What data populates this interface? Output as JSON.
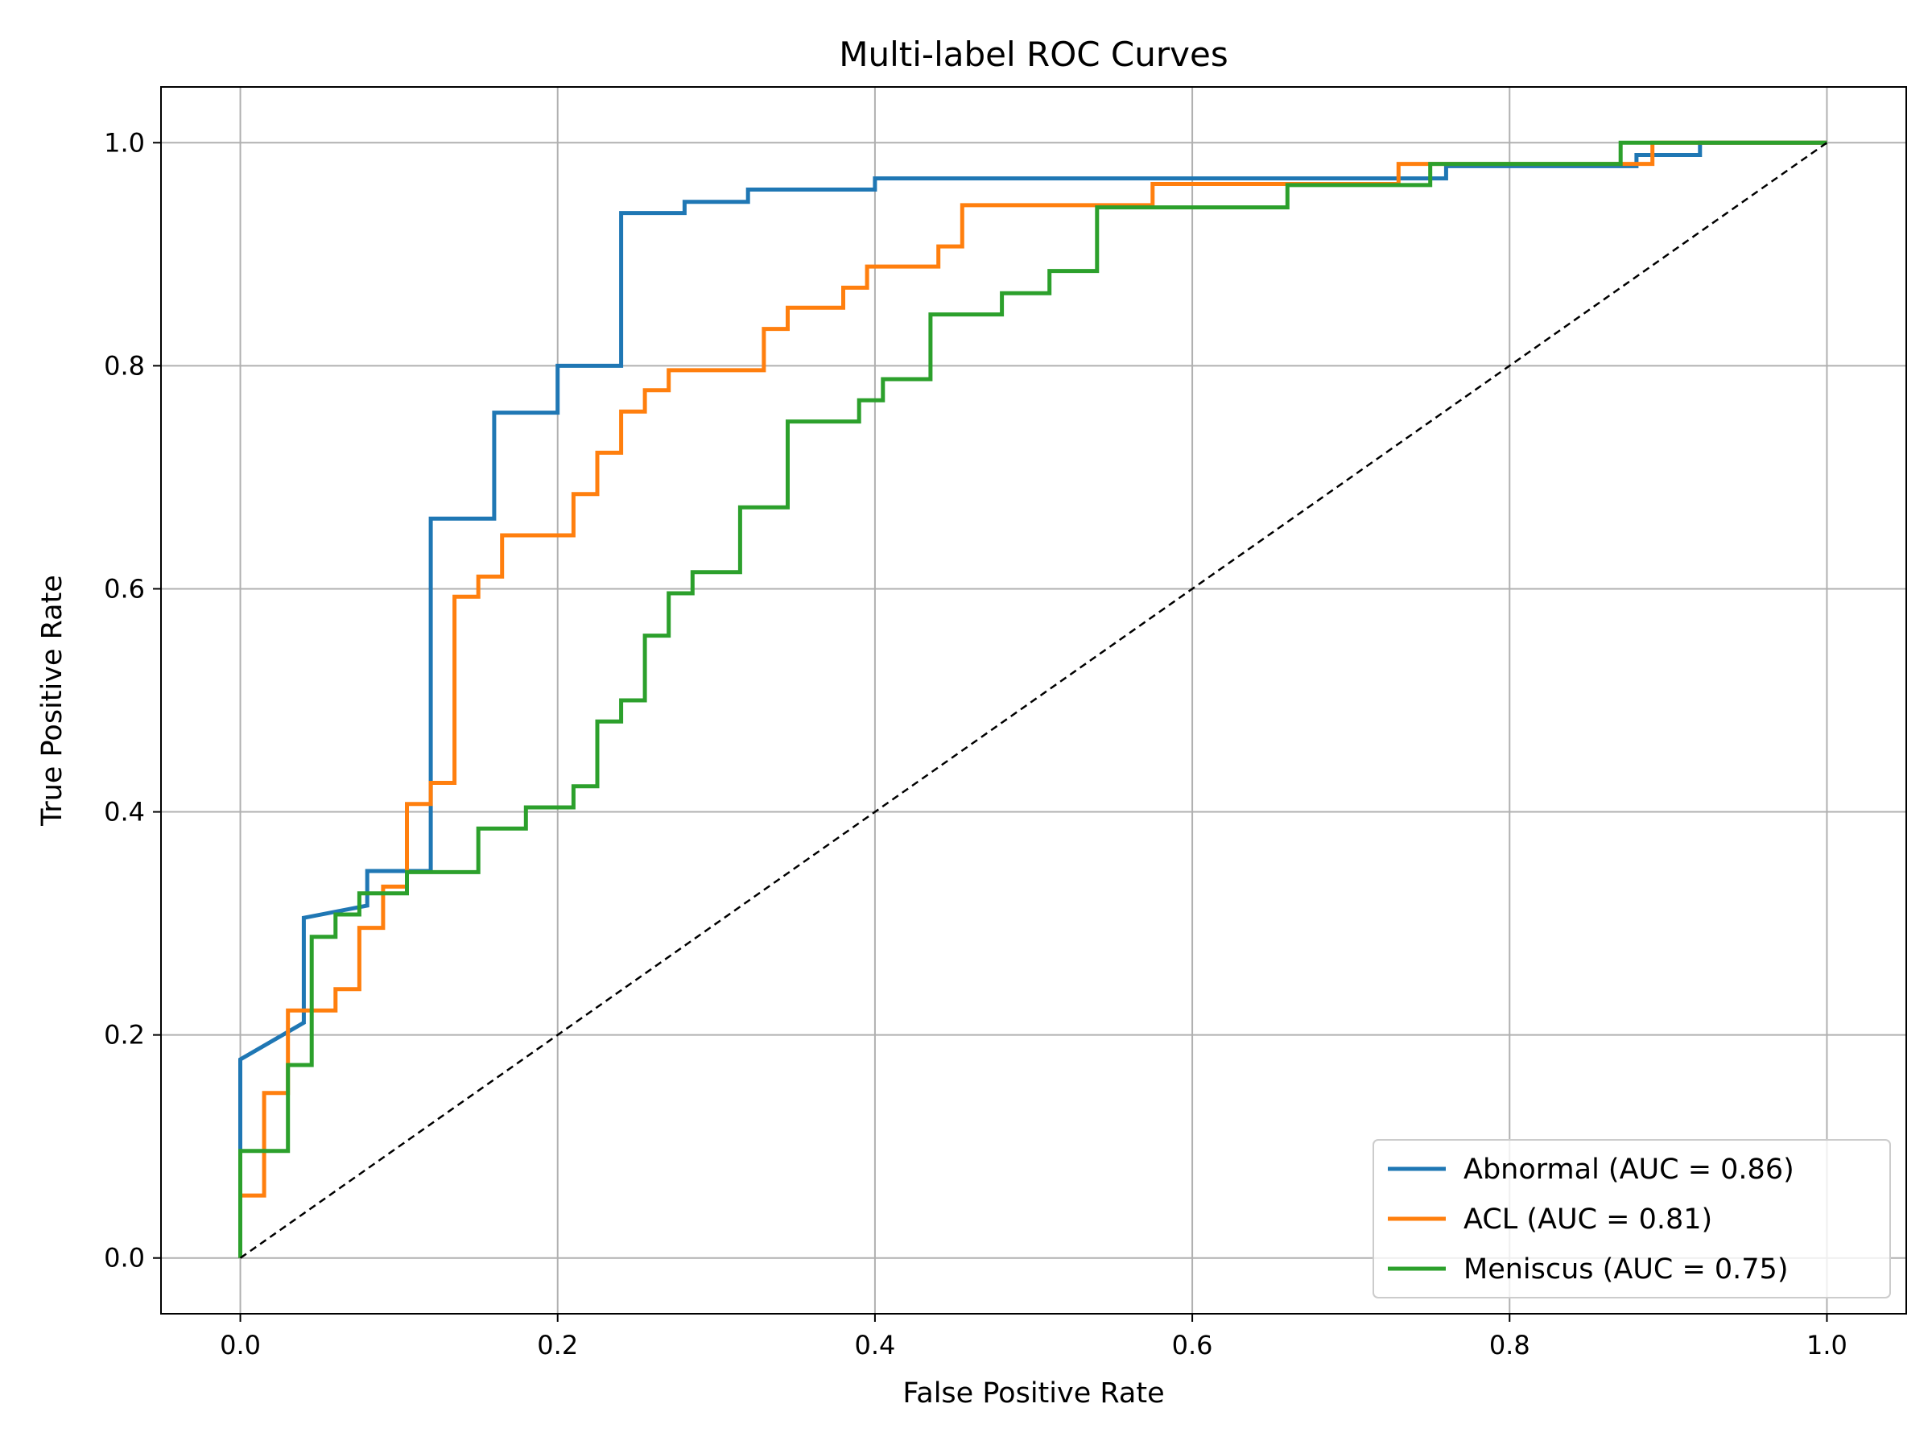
{
  "chart_data": {
    "type": "line",
    "title": "Multi-label ROC Curves",
    "xlabel": "False Positive Rate",
    "ylabel": "True Positive Rate",
    "xlim": [
      -0.05,
      1.05
    ],
    "ylim": [
      -0.05,
      1.05
    ],
    "xticks": [
      0.0,
      0.2,
      0.4,
      0.6,
      0.8,
      1.0
    ],
    "yticks": [
      0.0,
      0.2,
      0.4,
      0.6,
      0.8,
      1.0
    ],
    "xtick_labels": [
      "0.0",
      "0.2",
      "0.4",
      "0.6",
      "0.8",
      "1.0"
    ],
    "ytick_labels": [
      "0.0",
      "0.2",
      "0.4",
      "0.6",
      "0.8",
      "1.0"
    ],
    "grid": true,
    "legend_position": "lower-right",
    "series": [
      {
        "name": "Abnormal (AUC = 0.86)",
        "color": "#1f77b4",
        "x": [
          0,
          0,
          0.04,
          0.04,
          0.08,
          0.08,
          0.12,
          0.12,
          0.16,
          0.16,
          0.2,
          0.2,
          0.24,
          0.24,
          0.28,
          0.28,
          0.32,
          0.32,
          0.4,
          0.4,
          0.76,
          0.76,
          0.88,
          0.88,
          0.92,
          0.92,
          1.0
        ],
        "y": [
          0,
          0.178,
          0.211,
          0.305,
          0.316,
          0.347,
          0.347,
          0.663,
          0.663,
          0.758,
          0.758,
          0.8,
          0.8,
          0.937,
          0.937,
          0.947,
          0.947,
          0.958,
          0.958,
          0.968,
          0.968,
          0.979,
          0.979,
          0.989,
          0.989,
          1.0,
          1.0
        ]
      },
      {
        "name": "ACL (AUC = 0.81)",
        "color": "#ff7f0e",
        "x": [
          0,
          0,
          0.015,
          0.015,
          0.03,
          0.03,
          0.06,
          0.06,
          0.075,
          0.075,
          0.09,
          0.09,
          0.105,
          0.105,
          0.12,
          0.12,
          0.135,
          0.135,
          0.15,
          0.15,
          0.165,
          0.165,
          0.21,
          0.21,
          0.225,
          0.225,
          0.24,
          0.24,
          0.255,
          0.255,
          0.27,
          0.27,
          0.33,
          0.33,
          0.345,
          0.345,
          0.38,
          0.38,
          0.395,
          0.395,
          0.44,
          0.44,
          0.455,
          0.455,
          0.575,
          0.575,
          0.73,
          0.73,
          0.89,
          0.89,
          1.0
        ],
        "y": [
          0,
          0.056,
          0.056,
          0.148,
          0.148,
          0.222,
          0.222,
          0.241,
          0.241,
          0.296,
          0.296,
          0.333,
          0.333,
          0.407,
          0.407,
          0.426,
          0.426,
          0.593,
          0.593,
          0.611,
          0.611,
          0.648,
          0.648,
          0.685,
          0.685,
          0.722,
          0.722,
          0.759,
          0.759,
          0.778,
          0.778,
          0.796,
          0.796,
          0.833,
          0.833,
          0.852,
          0.852,
          0.87,
          0.87,
          0.889,
          0.889,
          0.907,
          0.907,
          0.944,
          0.944,
          0.963,
          0.963,
          0.981,
          0.981,
          1.0,
          1.0
        ]
      },
      {
        "name": "Meniscus (AUC = 0.75)",
        "color": "#2ca02c",
        "x": [
          0,
          0,
          0.03,
          0.03,
          0.045,
          0.045,
          0.06,
          0.06,
          0.075,
          0.075,
          0.105,
          0.105,
          0.15,
          0.15,
          0.18,
          0.18,
          0.21,
          0.21,
          0.225,
          0.225,
          0.24,
          0.24,
          0.255,
          0.255,
          0.27,
          0.27,
          0.285,
          0.285,
          0.315,
          0.315,
          0.345,
          0.345,
          0.39,
          0.39,
          0.405,
          0.405,
          0.435,
          0.435,
          0.48,
          0.48,
          0.51,
          0.51,
          0.54,
          0.54,
          0.66,
          0.66,
          0.75,
          0.75,
          0.87,
          0.87,
          1.0
        ],
        "y": [
          0,
          0.096,
          0.096,
          0.173,
          0.173,
          0.288,
          0.288,
          0.308,
          0.308,
          0.327,
          0.327,
          0.346,
          0.346,
          0.385,
          0.385,
          0.404,
          0.404,
          0.423,
          0.423,
          0.481,
          0.481,
          0.5,
          0.5,
          0.558,
          0.558,
          0.596,
          0.596,
          0.615,
          0.615,
          0.673,
          0.673,
          0.75,
          0.75,
          0.769,
          0.769,
          0.788,
          0.788,
          0.846,
          0.846,
          0.865,
          0.865,
          0.885,
          0.885,
          0.942,
          0.942,
          0.962,
          0.962,
          0.981,
          0.981,
          1.0,
          1.0
        ]
      }
    ],
    "reference_line": {
      "x": [
        0,
        1
      ],
      "y": [
        0,
        1
      ],
      "color": "#000000",
      "style": "dashed"
    }
  }
}
